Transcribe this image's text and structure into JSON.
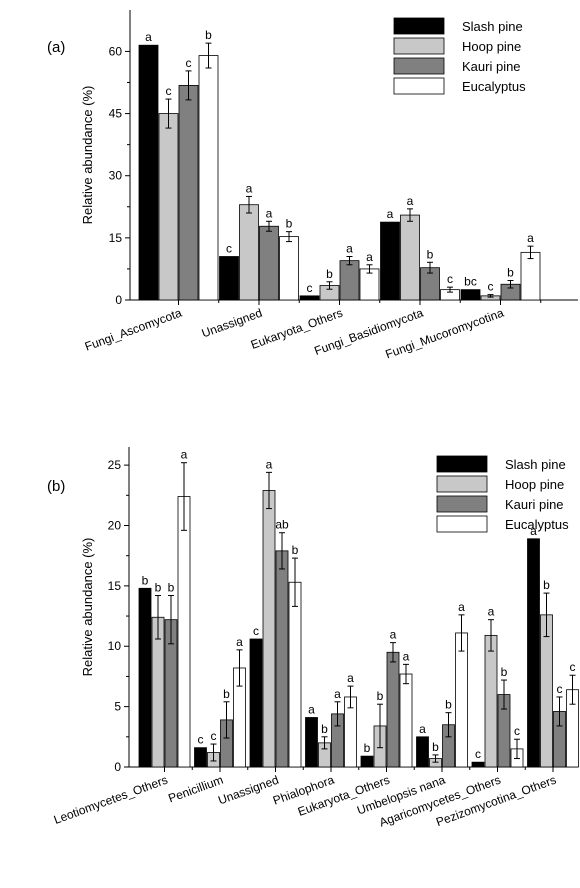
{
  "chart_data": [
    {
      "type": "bar",
      "panel_label": "(a)",
      "ylabel": "Relative abundance (%)",
      "ylim": [
        0,
        70
      ],
      "yticks": [
        0,
        15,
        30,
        45,
        60
      ],
      "legend_placement": "top-right",
      "categories": [
        "Fungi_Ascomycota",
        "Unassigned",
        "Eukaryota_Others",
        "Fungi_Basidiomycota",
        "Fungi_Mucoromycotina"
      ],
      "series": [
        {
          "name": "Slash pine",
          "color": "#000000",
          "values": [
            61.5,
            10.5,
            1.0,
            18.8,
            2.5
          ],
          "errors": [
            0,
            0,
            0,
            0,
            0
          ],
          "letters": [
            "a",
            "c",
            "c",
            "a",
            "bc"
          ]
        },
        {
          "name": "Hoop pine",
          "color": "#c8c8c8",
          "values": [
            45.0,
            23.0,
            3.5,
            20.5,
            1.0
          ],
          "errors": [
            3.5,
            2.0,
            0.9,
            1.5,
            0.3
          ],
          "letters": [
            "c",
            "a",
            "b",
            "a",
            "c"
          ]
        },
        {
          "name": "Kauri pine",
          "color": "#808080",
          "values": [
            51.8,
            17.8,
            9.5,
            7.8,
            3.8
          ],
          "errors": [
            3.5,
            1.2,
            1.0,
            1.3,
            0.9
          ],
          "letters": [
            "c",
            "a",
            "a",
            "b",
            "b"
          ]
        },
        {
          "name": "Eucalyptus",
          "color": "#ffffff",
          "values": [
            59.0,
            15.3,
            7.5,
            2.5,
            11.5
          ],
          "errors": [
            3.0,
            1.2,
            1.0,
            0.6,
            1.5
          ],
          "letters": [
            "b",
            "b",
            "a",
            "c",
            "a"
          ]
        }
      ]
    },
    {
      "type": "bar",
      "panel_label": "(b)",
      "ylabel": "Relative abundance (%)",
      "ylim": [
        0,
        26.5
      ],
      "yticks": [
        0,
        5,
        10,
        15,
        20,
        25
      ],
      "legend_placement": "top-right",
      "categories": [
        "Leotiomycetes_Others",
        "Penicillium",
        "Unassigned",
        "Phialophora",
        "Eukaryota_Others",
        "Umbelopsis nana",
        "Agaricomycetes_Others",
        "Pezizomycotina_Others"
      ],
      "series": [
        {
          "name": "Slash pine",
          "color": "#000000",
          "values": [
            14.8,
            1.6,
            10.6,
            4.1,
            0.9,
            2.5,
            0.4,
            18.9
          ],
          "errors": [
            0,
            0,
            0,
            0,
            0,
            0,
            0,
            0
          ],
          "letters": [
            "b",
            "c",
            "c",
            "a",
            "b",
            "a",
            "c",
            "a"
          ]
        },
        {
          "name": "Hoop pine",
          "color": "#c8c8c8",
          "values": [
            12.4,
            1.2,
            22.9,
            2.0,
            3.4,
            0.7,
            10.9,
            12.6
          ],
          "errors": [
            1.8,
            0.7,
            1.5,
            0.5,
            1.8,
            0.3,
            1.3,
            1.8
          ],
          "letters": [
            "b",
            "c",
            "a",
            "b",
            "b",
            "b",
            "a",
            "b"
          ]
        },
        {
          "name": "Kauri pine",
          "color": "#808080",
          "values": [
            12.2,
            3.9,
            17.9,
            4.4,
            9.5,
            3.5,
            6.0,
            4.6
          ],
          "errors": [
            2.0,
            1.5,
            1.5,
            1.0,
            0.8,
            1.0,
            1.2,
            1.2
          ],
          "letters": [
            "b",
            "b",
            "ab",
            "a",
            "a",
            "b",
            "b",
            "c"
          ]
        },
        {
          "name": "Eucalyptus",
          "color": "#ffffff",
          "values": [
            22.4,
            8.2,
            15.3,
            5.8,
            7.7,
            11.1,
            1.5,
            6.4
          ],
          "errors": [
            2.8,
            1.5,
            2.0,
            0.9,
            0.8,
            1.5,
            0.8,
            1.2
          ],
          "letters": [
            "a",
            "a",
            "b",
            "a",
            "a",
            "a",
            "c",
            "c"
          ]
        }
      ]
    }
  ]
}
